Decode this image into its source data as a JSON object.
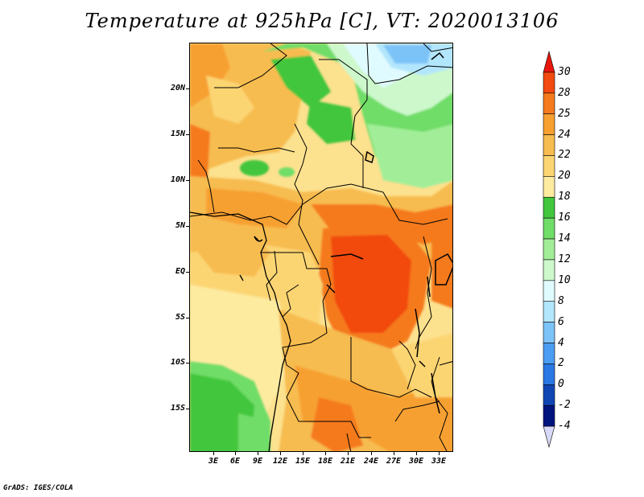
{
  "title": "Temperature at 925hPa [C], VT: 2020013106",
  "credit": "GrADS: IGES/COLA",
  "lat_labels": [
    "20N",
    "15N",
    "10N",
    "5N",
    "EQ",
    "5S",
    "10S",
    "15S"
  ],
  "lon_labels": [
    "3E",
    "6E",
    "9E",
    "12E",
    "15E",
    "18E",
    "21E",
    "24E",
    "27E",
    "30E",
    "33E"
  ],
  "colorbar": {
    "labels": [
      "30",
      "28",
      "25",
      "24",
      "22",
      "20",
      "18",
      "16",
      "14",
      "12",
      "10",
      "8",
      "6",
      "4",
      "2",
      "0",
      "-2",
      "-4"
    ],
    "colors": [
      "#e8160c",
      "#f24a10",
      "#f57a1d",
      "#f7a030",
      "#f7bc4f",
      "#fcd573",
      "#fdeba0",
      "#42c63e",
      "#6fdd68",
      "#a2ee98",
      "#cdf8cc",
      "#e0fbff",
      "#b2e6fc",
      "#7cc3f8",
      "#4b9df3",
      "#2a78e4",
      "#1046b4",
      "#00147e",
      "#d8d8f8"
    ]
  }
}
